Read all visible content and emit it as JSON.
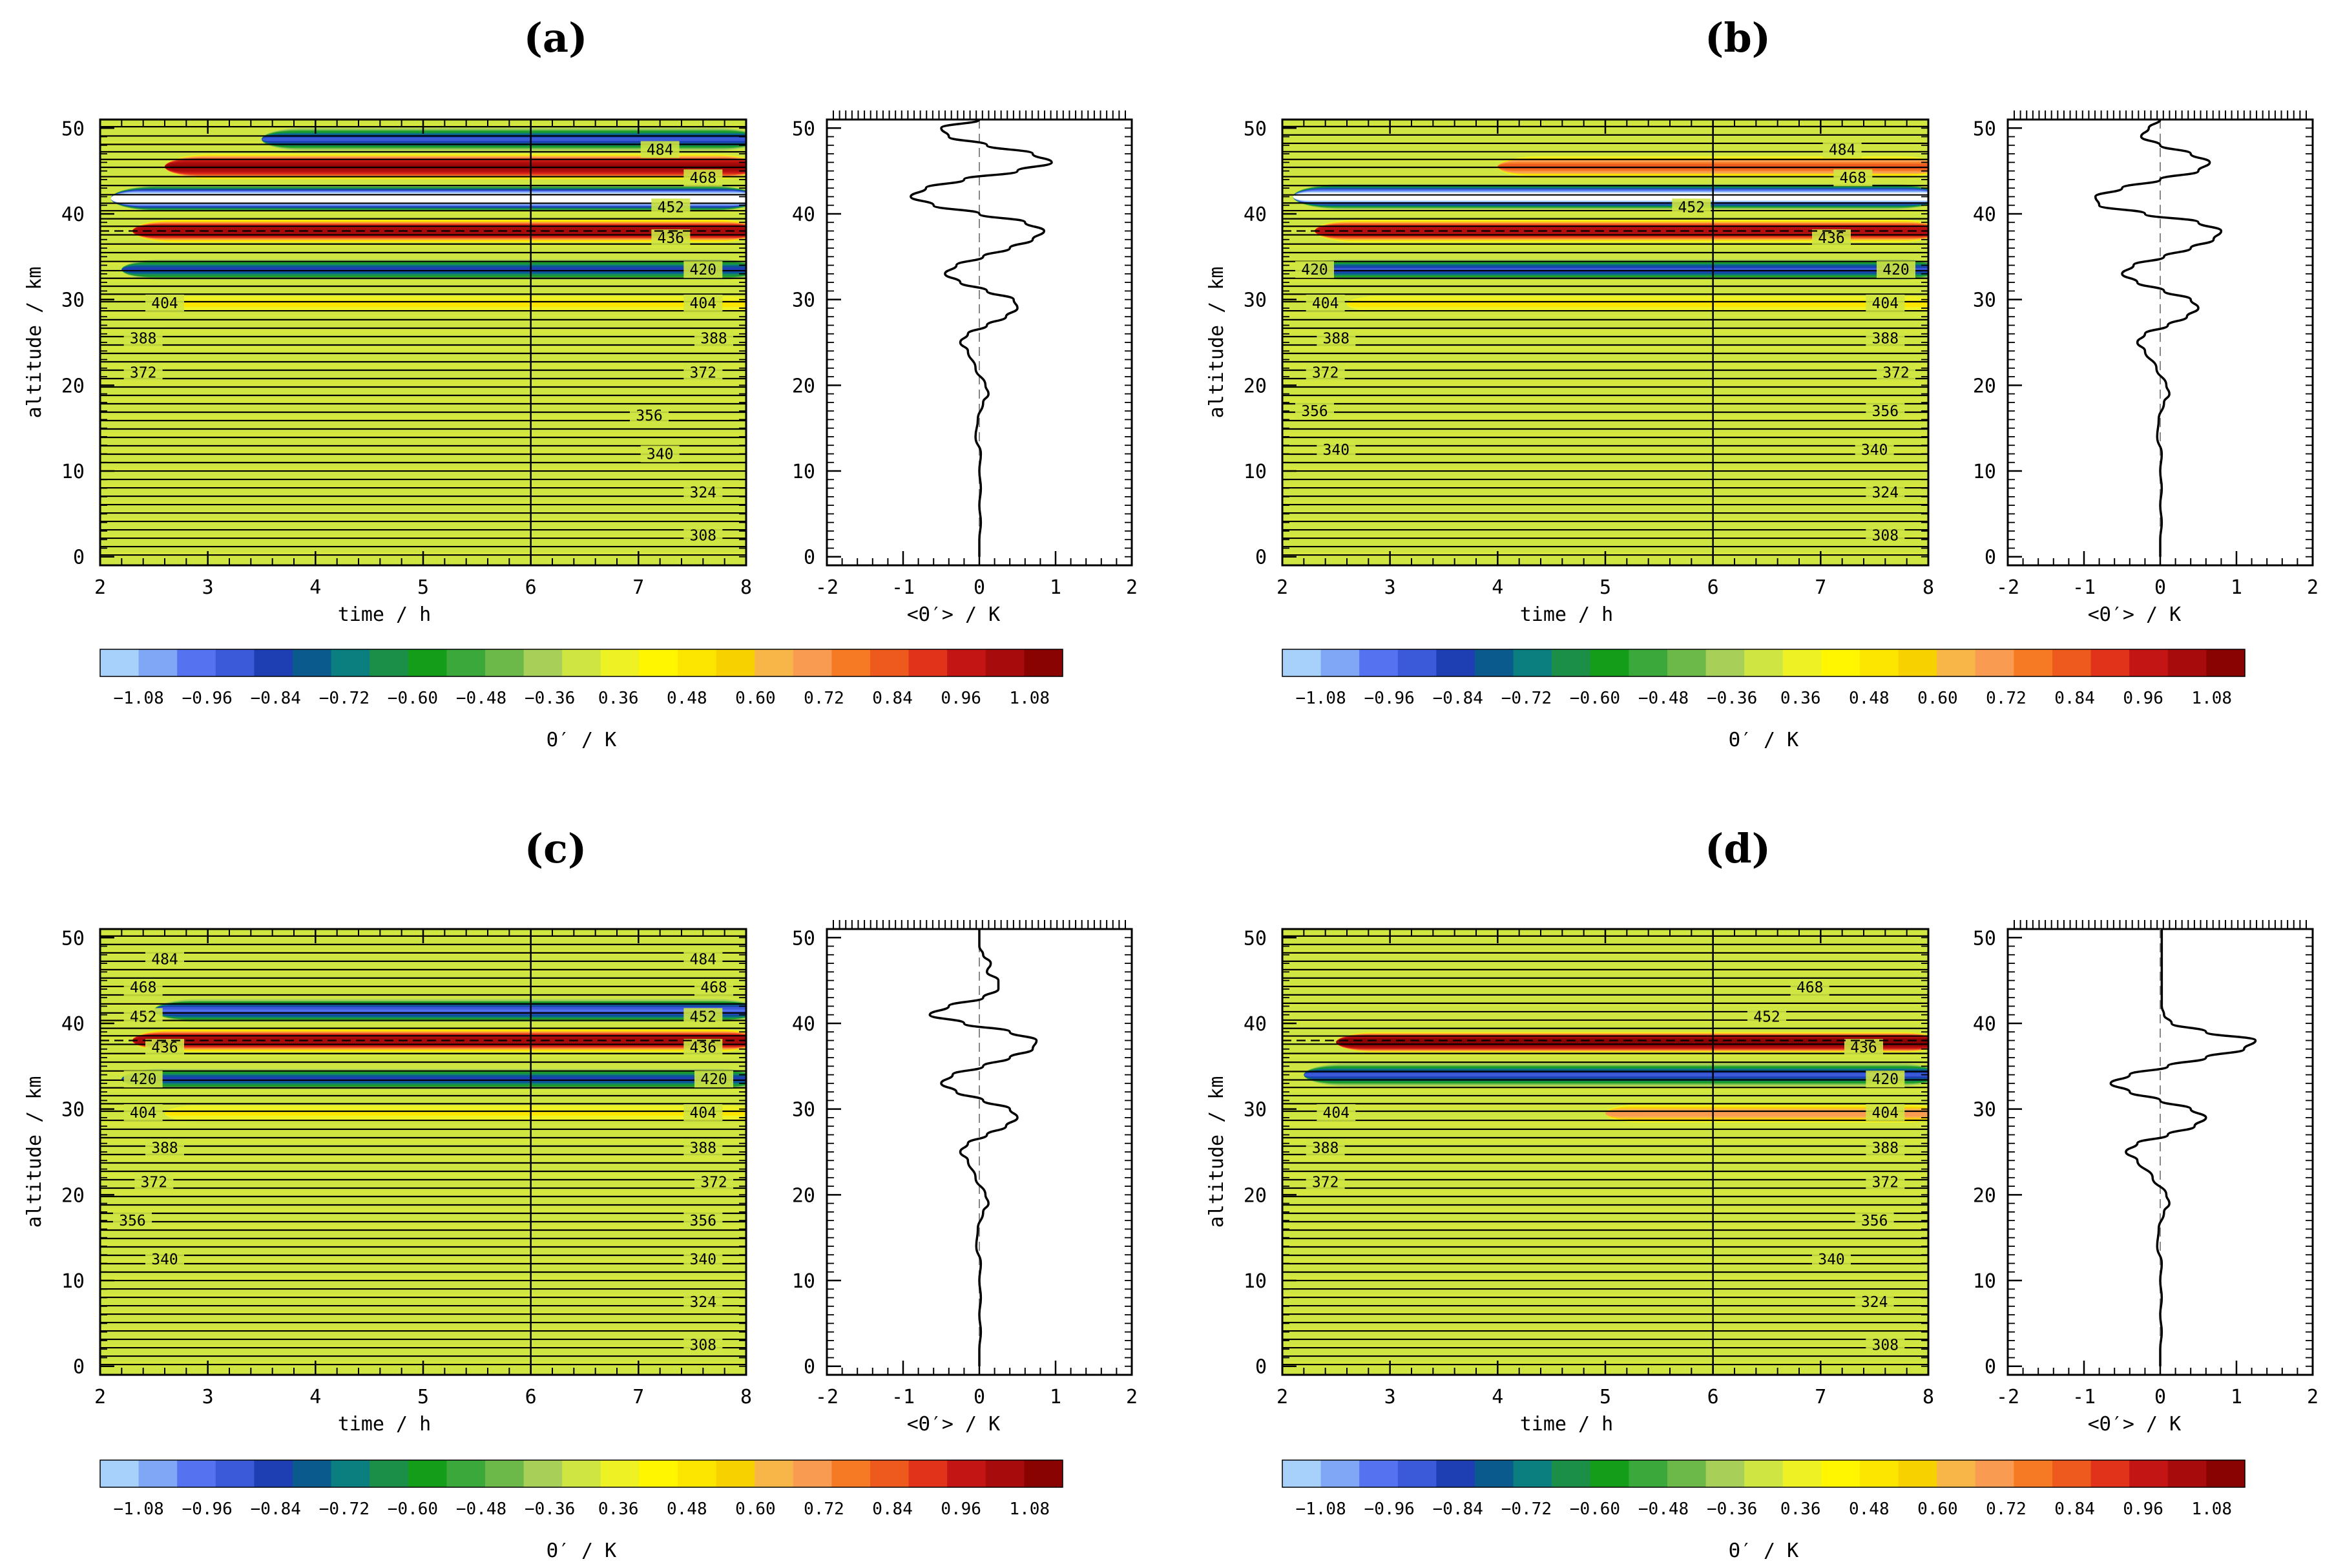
{
  "figure": {
    "colorbar": {
      "colors": [
        "#a7d0fb",
        "#7fa7f5",
        "#5572f0",
        "#3a5ad9",
        "#1d3fb3",
        "#0b5a8e",
        "#0b7f7f",
        "#1b8f48",
        "#139d19",
        "#3aa83a",
        "#6cb94a",
        "#a8d058",
        "#cfe642",
        "#eef224",
        "#fff600",
        "#fce600",
        "#f7d200",
        "#f9b648",
        "#f99b51",
        "#f67a23",
        "#ee5a1e",
        "#e1321a",
        "#c41515",
        "#a80b0b",
        "#8a0303"
      ],
      "tick_labels": [
        "-1.08",
        "-0.96",
        "-0.84",
        "-0.72",
        "-0.60",
        "-0.48",
        "-0.36",
        "0.36",
        "0.48",
        "0.60",
        "0.72",
        "0.84",
        "0.96",
        "1.08"
      ],
      "label": "Θ′ / K"
    },
    "axes_labels": {
      "contour_x": "time / h",
      "contour_y": "altitude / km",
      "profile_x": "<Θ′> / K"
    },
    "x_ticks": [
      "2",
      "3",
      "4",
      "5",
      "6",
      "7",
      "8"
    ],
    "y_ticks": [
      "0",
      "10",
      "20",
      "30",
      "40",
      "50"
    ],
    "profile_x_ticks": [
      "-2",
      "-1",
      "0",
      "1",
      "2"
    ]
  },
  "chart_data": [
    {
      "type": "heatmap",
      "title": "(a)",
      "xlabel": "time / h",
      "ylabel": "altitude / km",
      "xlim": [
        2,
        8
      ],
      "ylim": [
        0,
        50
      ],
      "dashed_line_altitude": 38,
      "vertical_line_time": 6,
      "anomaly_bands": [
        {
          "altitude": 48.7,
          "value": -0.8,
          "width": 0.9,
          "t_start": 3.5
        },
        {
          "altitude": 45.5,
          "value": 1.05,
          "width": 1.0,
          "t_start": 2.6
        },
        {
          "altitude": 41.8,
          "value": -1.2,
          "width": 1.0,
          "t_start": 2.1
        },
        {
          "altitude": 38.0,
          "value": 1.0,
          "width": 0.9,
          "t_start": 2.3
        },
        {
          "altitude": 33.5,
          "value": -0.75,
          "width": 0.8,
          "t_start": 2.2
        },
        {
          "altitude": 29.5,
          "value": 0.4,
          "width": 0.8,
          "t_start": 2.5
        }
      ],
      "contour_labels": [
        {
          "value": "484",
          "time": 7.2,
          "altitude": 47.5
        },
        {
          "value": "468",
          "time": 7.6,
          "altitude": 44.2
        },
        {
          "value": "452",
          "time": 7.3,
          "altitude": 40.8
        },
        {
          "value": "436",
          "time": 7.3,
          "altitude": 37.2
        },
        {
          "value": "420",
          "time": 7.6,
          "altitude": 33.5
        },
        {
          "value": "404",
          "time": 2.6,
          "altitude": 29.6
        },
        {
          "value": "404",
          "time": 7.6,
          "altitude": 29.6
        },
        {
          "value": "388",
          "time": 2.4,
          "altitude": 25.5
        },
        {
          "value": "388",
          "time": 7.7,
          "altitude": 25.5
        },
        {
          "value": "372",
          "time": 2.4,
          "altitude": 21.5
        },
        {
          "value": "372",
          "time": 7.6,
          "altitude": 21.5
        },
        {
          "value": "356",
          "time": 7.1,
          "altitude": 16.5
        },
        {
          "value": "340",
          "time": 7.2,
          "altitude": 12.0
        },
        {
          "value": "324",
          "time": 7.6,
          "altitude": 7.5
        },
        {
          "value": "308",
          "time": 7.6,
          "altitude": 2.5
        }
      ],
      "profile": {
        "xlabel": "<Θ′> / K",
        "xlim": [
          -2,
          2
        ],
        "z": [
          0,
          2,
          4,
          6,
          8,
          10,
          12,
          14,
          16,
          18,
          19,
          20,
          22,
          24,
          25,
          26,
          27,
          28,
          29,
          30,
          31,
          32,
          33,
          34,
          35,
          36,
          37,
          38,
          39,
          40,
          41,
          42,
          43,
          44,
          45,
          46,
          47,
          48,
          49,
          50,
          51
        ],
        "v": [
          0,
          0,
          0.02,
          0,
          0.02,
          0,
          0.02,
          -0.05,
          -0.02,
          0.05,
          0.12,
          0.08,
          -0.05,
          -0.15,
          -0.25,
          -0.15,
          0.1,
          0.35,
          0.5,
          0.45,
          0.1,
          -0.25,
          -0.45,
          -0.3,
          0.05,
          0.4,
          0.7,
          0.85,
          0.6,
          0.0,
          -0.6,
          -0.9,
          -0.7,
          -0.2,
          0.5,
          0.95,
          0.7,
          0.1,
          -0.4,
          -0.5,
          0.0
        ]
      }
    },
    {
      "type": "heatmap",
      "title": "(b)",
      "xlabel": "time / h",
      "ylabel": "altitude / km",
      "xlim": [
        2,
        8
      ],
      "ylim": [
        0,
        50
      ],
      "dashed_line_altitude": 38,
      "vertical_line_time": 6,
      "anomaly_bands": [
        {
          "altitude": 45.5,
          "value": 0.7,
          "width": 0.9,
          "t_start": 4.0
        },
        {
          "altitude": 42.0,
          "value": -1.1,
          "width": 1.0,
          "t_start": 2.1
        },
        {
          "altitude": 38.0,
          "value": 0.95,
          "width": 0.9,
          "t_start": 2.3
        },
        {
          "altitude": 33.5,
          "value": -0.8,
          "width": 0.8,
          "t_start": 2.2
        },
        {
          "altitude": 29.5,
          "value": 0.4,
          "width": 0.8,
          "t_start": 2.6
        }
      ],
      "contour_labels": [
        {
          "value": "484",
          "time": 7.2,
          "altitude": 47.5
        },
        {
          "value": "468",
          "time": 7.3,
          "altitude": 44.2
        },
        {
          "value": "452",
          "time": 5.8,
          "altitude": 40.8
        },
        {
          "value": "436",
          "time": 7.1,
          "altitude": 37.2
        },
        {
          "value": "420",
          "time": 2.3,
          "altitude": 33.5
        },
        {
          "value": "420",
          "time": 7.7,
          "altitude": 33.5
        },
        {
          "value": "404",
          "time": 2.4,
          "altitude": 29.6
        },
        {
          "value": "404",
          "time": 7.6,
          "altitude": 29.6
        },
        {
          "value": "388",
          "time": 2.5,
          "altitude": 25.5
        },
        {
          "value": "388",
          "time": 7.6,
          "altitude": 25.5
        },
        {
          "value": "372",
          "time": 2.4,
          "altitude": 21.5
        },
        {
          "value": "372",
          "time": 7.7,
          "altitude": 21.5
        },
        {
          "value": "356",
          "time": 2.3,
          "altitude": 17.0
        },
        {
          "value": "356",
          "time": 7.6,
          "altitude": 17.0
        },
        {
          "value": "340",
          "time": 2.5,
          "altitude": 12.5
        },
        {
          "value": "340",
          "time": 7.5,
          "altitude": 12.5
        },
        {
          "value": "324",
          "time": 7.6,
          "altitude": 7.5
        },
        {
          "value": "308",
          "time": 7.6,
          "altitude": 2.5
        }
      ],
      "profile": {
        "xlabel": "<Θ′> / K",
        "xlim": [
          -2,
          2
        ],
        "z": [
          0,
          2,
          4,
          6,
          8,
          10,
          12,
          14,
          16,
          18,
          19,
          20,
          22,
          24,
          25,
          26,
          27,
          28,
          29,
          30,
          31,
          32,
          33,
          34,
          35,
          36,
          37,
          38,
          39,
          40,
          41,
          42,
          43,
          44,
          45,
          46,
          47,
          48,
          49,
          50,
          51
        ],
        "v": [
          0,
          0,
          0.02,
          0,
          0.02,
          0,
          0.02,
          -0.04,
          -0.02,
          0.05,
          0.12,
          0.08,
          -0.05,
          -0.2,
          -0.3,
          -0.2,
          0.1,
          0.35,
          0.5,
          0.4,
          0.05,
          -0.3,
          -0.5,
          -0.35,
          0.05,
          0.4,
          0.7,
          0.8,
          0.5,
          -0.2,
          -0.8,
          -0.85,
          -0.5,
          0.0,
          0.5,
          0.65,
          0.4,
          0.0,
          -0.25,
          -0.15,
          0.0
        ]
      }
    },
    {
      "type": "heatmap",
      "title": "(c)",
      "xlabel": "time / h",
      "ylabel": "altitude / km",
      "xlim": [
        2,
        8
      ],
      "ylim": [
        0,
        50
      ],
      "dashed_line_altitude": 38,
      "vertical_line_time": 6,
      "anomaly_bands": [
        {
          "altitude": 41.5,
          "value": -0.85,
          "width": 0.9,
          "t_start": 2.5
        },
        {
          "altitude": 38.0,
          "value": 1.0,
          "width": 0.9,
          "t_start": 2.3
        },
        {
          "altitude": 33.5,
          "value": -0.75,
          "width": 0.8,
          "t_start": 2.2
        },
        {
          "altitude": 29.5,
          "value": 0.38,
          "width": 0.8,
          "t_start": 2.6
        }
      ],
      "contour_labels": [
        {
          "value": "484",
          "time": 2.6,
          "altitude": 47.5
        },
        {
          "value": "484",
          "time": 7.6,
          "altitude": 47.5
        },
        {
          "value": "468",
          "time": 2.4,
          "altitude": 44.2
        },
        {
          "value": "468",
          "time": 7.7,
          "altitude": 44.2
        },
        {
          "value": "452",
          "time": 2.4,
          "altitude": 40.8
        },
        {
          "value": "452",
          "time": 7.6,
          "altitude": 40.8
        },
        {
          "value": "436",
          "time": 2.6,
          "altitude": 37.2
        },
        {
          "value": "436",
          "time": 7.6,
          "altitude": 37.2
        },
        {
          "value": "420",
          "time": 2.4,
          "altitude": 33.5
        },
        {
          "value": "420",
          "time": 7.7,
          "altitude": 33.5
        },
        {
          "value": "404",
          "time": 2.4,
          "altitude": 29.6
        },
        {
          "value": "404",
          "time": 7.6,
          "altitude": 29.6
        },
        {
          "value": "388",
          "time": 2.6,
          "altitude": 25.5
        },
        {
          "value": "388",
          "time": 7.6,
          "altitude": 25.5
        },
        {
          "value": "372",
          "time": 2.5,
          "altitude": 21.5
        },
        {
          "value": "372",
          "time": 7.7,
          "altitude": 21.5
        },
        {
          "value": "356",
          "time": 2.3,
          "altitude": 17.0
        },
        {
          "value": "356",
          "time": 7.6,
          "altitude": 17.0
        },
        {
          "value": "340",
          "time": 2.6,
          "altitude": 12.5
        },
        {
          "value": "340",
          "time": 7.6,
          "altitude": 12.5
        },
        {
          "value": "324",
          "time": 7.6,
          "altitude": 7.5
        },
        {
          "value": "308",
          "time": 7.6,
          "altitude": 2.5
        }
      ],
      "profile": {
        "xlabel": "<Θ′> / K",
        "xlim": [
          -2,
          2
        ],
        "z": [
          0,
          2,
          4,
          6,
          8,
          10,
          12,
          14,
          16,
          18,
          19,
          20,
          22,
          24,
          25,
          26,
          27,
          28,
          29,
          30,
          31,
          32,
          33,
          34,
          35,
          36,
          37,
          38,
          39,
          40,
          41,
          42,
          43,
          44,
          45,
          46,
          47,
          48,
          49,
          50,
          51
        ],
        "v": [
          0,
          0,
          0.02,
          0,
          0.02,
          0,
          0.02,
          -0.04,
          -0.02,
          0.05,
          0.12,
          0.08,
          -0.05,
          -0.15,
          -0.25,
          -0.15,
          0.1,
          0.35,
          0.5,
          0.4,
          0.05,
          -0.3,
          -0.5,
          -0.35,
          0.05,
          0.4,
          0.7,
          0.75,
          0.4,
          -0.2,
          -0.65,
          -0.4,
          0.05,
          0.25,
          0.25,
          0.1,
          0.15,
          0.05,
          0.0,
          0.0,
          0.0
        ]
      }
    },
    {
      "type": "heatmap",
      "title": "(d)",
      "xlabel": "time / h",
      "ylabel": "altitude / km",
      "xlim": [
        2,
        8
      ],
      "ylim": [
        0,
        50
      ],
      "dashed_line_altitude": 38,
      "vertical_line_time": 6,
      "anomaly_bands": [
        {
          "altitude": 37.8,
          "value": 1.2,
          "width": 0.8,
          "t_start": 2.5
        },
        {
          "altitude": 34.0,
          "value": -0.8,
          "width": 0.9,
          "t_start": 2.2
        },
        {
          "altitude": 29.5,
          "value": 0.6,
          "width": 0.8,
          "t_start": 5.0
        }
      ],
      "contour_labels": [
        {
          "value": "468",
          "time": 6.9,
          "altitude": 44.2
        },
        {
          "value": "452",
          "time": 6.5,
          "altitude": 40.8
        },
        {
          "value": "436",
          "time": 7.4,
          "altitude": 37.2
        },
        {
          "value": "420",
          "time": 7.6,
          "altitude": 33.5
        },
        {
          "value": "404",
          "time": 2.5,
          "altitude": 29.6
        },
        {
          "value": "404",
          "time": 7.6,
          "altitude": 29.6
        },
        {
          "value": "388",
          "time": 2.4,
          "altitude": 25.5
        },
        {
          "value": "388",
          "time": 7.6,
          "altitude": 25.5
        },
        {
          "value": "372",
          "time": 2.4,
          "altitude": 21.5
        },
        {
          "value": "372",
          "time": 7.6,
          "altitude": 21.5
        },
        {
          "value": "356",
          "time": 7.5,
          "altitude": 17.0
        },
        {
          "value": "340",
          "time": 7.1,
          "altitude": 12.5
        },
        {
          "value": "324",
          "time": 7.5,
          "altitude": 7.5
        },
        {
          "value": "308",
          "time": 7.6,
          "altitude": 2.5
        }
      ],
      "profile": {
        "xlabel": "<Θ′> / K",
        "xlim": [
          -2,
          2
        ],
        "z": [
          0,
          2,
          4,
          6,
          8,
          10,
          12,
          14,
          16,
          18,
          19,
          20,
          22,
          24,
          25,
          26,
          27,
          28,
          29,
          30,
          31,
          32,
          33,
          34,
          35,
          36,
          37,
          38,
          39,
          40,
          41,
          42,
          43,
          44,
          45,
          46,
          47,
          48,
          49,
          50,
          51
        ],
        "v": [
          0,
          0,
          0.02,
          0,
          0.02,
          0,
          0.02,
          -0.04,
          -0.02,
          0.05,
          0.12,
          0.08,
          -0.1,
          -0.3,
          -0.45,
          -0.3,
          0.1,
          0.45,
          0.6,
          0.4,
          0.0,
          -0.4,
          -0.65,
          -0.4,
          0.1,
          0.6,
          1.1,
          1.25,
          0.6,
          0.15,
          0.05,
          0.02,
          0.02,
          0.02,
          0.02,
          0.02,
          0.02,
          0.02,
          0.02,
          0.02,
          0.02
        ]
      }
    }
  ]
}
